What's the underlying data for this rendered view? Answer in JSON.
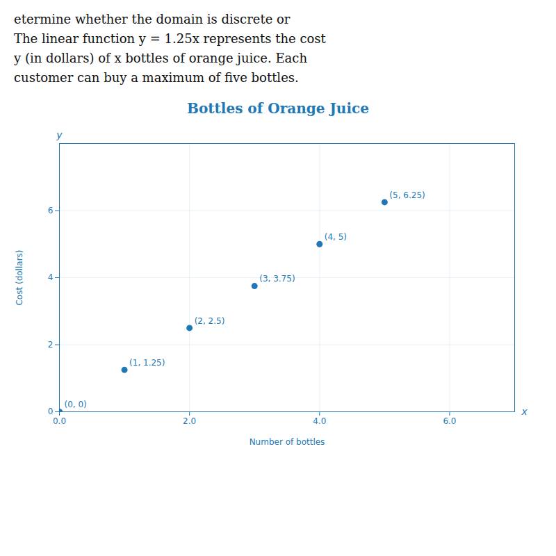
{
  "chart_data": {
    "type": "scatter",
    "title": "Bottles of Orange Juice",
    "subtitle": [
      "etermine whether the domain is discrete or",
      "The linear function y = 1.25x represents the cost",
      "y (in dollars) of x bottles of orange juice. Each",
      "customer can buy a maximum of five bottles."
    ],
    "xlabel": "Number of bottles",
    "ylabel": "Cost (dollars)",
    "x": [
      0,
      1,
      2,
      3,
      4,
      5
    ],
    "values": [
      0,
      1.25,
      2.5,
      3.75,
      5,
      6.25
    ],
    "value_labels": [
      "(0, 0)",
      "(1, 1.25)",
      "(2, 2.5)",
      "(3, 3.75)",
      "(4, 5)",
      "(5, 6.25)"
    ],
    "data_labels": true,
    "color": "#2178b4",
    "xlim": [
      0,
      7
    ],
    "ylim": [
      0,
      8
    ],
    "xticks": [
      0,
      2,
      4,
      6
    ],
    "yticks": [
      0,
      2,
      4,
      6
    ],
    "grid": true,
    "annotations": [
      "x",
      "y"
    ]
  }
}
